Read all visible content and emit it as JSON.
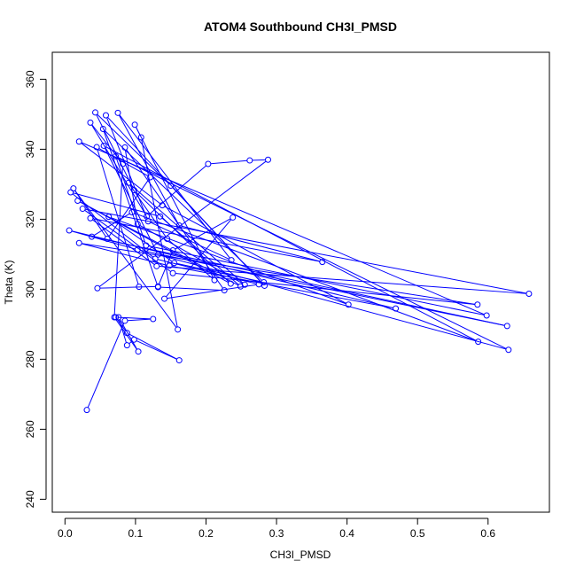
{
  "chart_data": {
    "type": "scatter",
    "title": "ATOM4 Southbound CH3I_PMSD",
    "xlabel": "CH3I_PMSD",
    "ylabel": "Theta (K)",
    "xlim": [
      -0.018,
      0.687
    ],
    "ylim": [
      236.3,
      367.7
    ],
    "xticks": [
      0.0,
      0.1,
      0.2,
      0.3,
      0.4,
      0.5,
      0.6
    ],
    "xtick_labels": [
      "0.0",
      "0.1",
      "0.2",
      "0.3",
      "0.4",
      "0.5",
      "0.6"
    ],
    "yticks": [
      240,
      260,
      280,
      300,
      320,
      340,
      360
    ],
    "ytick_labels": [
      "240",
      "260",
      "280",
      "300",
      "320",
      "340",
      "360"
    ],
    "grid": false,
    "marker": "open-circle",
    "line": "connected-in-order",
    "colors": {
      "series": "#0000ff",
      "axes": "#000000",
      "background": "#ffffff"
    },
    "series": [
      {
        "points": [
          [
            0.031,
            265.5
          ],
          [
            0.085,
            291.0
          ],
          [
            0.125,
            291.5
          ],
          [
            0.072,
            292.0
          ],
          [
            0.088,
            287.5
          ],
          [
            0.162,
            279.7
          ],
          [
            0.098,
            285.6
          ],
          [
            0.088,
            284.0
          ],
          [
            0.076,
            292.0
          ],
          [
            0.104,
            282.2
          ],
          [
            0.07,
            292.0
          ],
          [
            0.082,
            335.8
          ],
          [
            0.036,
            347.6
          ],
          [
            0.116,
            320.8
          ],
          [
            0.203,
            335.8
          ],
          [
            0.262,
            336.8
          ],
          [
            0.288,
            337.0
          ],
          [
            0.046,
            300.3
          ],
          [
            0.132,
            300.8
          ],
          [
            0.153,
            311.1
          ],
          [
            0.238,
            320.5
          ],
          [
            0.141,
            297.3
          ],
          [
            0.275,
            301.4
          ],
          [
            0.128,
            308.7
          ],
          [
            0.008,
            327.7
          ],
          [
            0.135,
            320.8
          ],
          [
            0.249,
            300.8
          ],
          [
            0.018,
            325.3
          ],
          [
            0.235,
            301.6
          ],
          [
            0.098,
            328.3
          ],
          [
            0.043,
            350.5
          ],
          [
            0.15,
            329.6
          ],
          [
            0.283,
            301.0
          ],
          [
            0.058,
            349.7
          ],
          [
            0.118,
            319.4
          ],
          [
            0.236,
            308.3
          ],
          [
            0.075,
            350.4
          ],
          [
            0.162,
            318.2
          ],
          [
            0.365,
            307.8
          ],
          [
            0.036,
            320.3
          ],
          [
            0.13,
            306.6
          ],
          [
            0.658,
            298.7
          ],
          [
            0.025,
            323.0
          ],
          [
            0.153,
            304.6
          ],
          [
            0.585,
            295.6
          ],
          [
            0.02,
            313.2
          ],
          [
            0.148,
            306.7
          ],
          [
            0.469,
            294.5
          ],
          [
            0.006,
            316.8
          ],
          [
            0.103,
            311.3
          ],
          [
            0.627,
            289.5
          ],
          [
            0.038,
            315.0
          ],
          [
            0.095,
            322.0
          ],
          [
            0.586,
            285.0
          ],
          [
            0.055,
            341.0
          ],
          [
            0.132,
            309.9
          ],
          [
            0.629,
            282.7
          ],
          [
            0.072,
            338.0
          ],
          [
            0.115,
            312.5
          ],
          [
            0.598,
            292.5
          ],
          [
            0.02,
            342.2
          ],
          [
            0.138,
            324.0
          ],
          [
            0.402,
            295.6
          ],
          [
            0.062,
            320.7
          ],
          [
            0.155,
            307.5
          ],
          [
            0.282,
            302.0
          ],
          [
            0.054,
            345.8
          ],
          [
            0.132,
            300.6
          ],
          [
            0.226,
            299.7
          ],
          [
            0.085,
            340.5
          ],
          [
            0.103,
            318.6
          ],
          [
            0.255,
            301.3
          ],
          [
            0.09,
            330.4
          ],
          [
            0.145,
            314.4
          ],
          [
            0.212,
            302.6
          ],
          [
            0.099,
            347.0
          ],
          [
            0.108,
            343.4
          ],
          [
            0.16,
            288.5
          ],
          [
            0.012,
            328.8
          ],
          [
            0.06,
            314.4
          ],
          [
            0.121,
            332.0
          ],
          [
            0.045,
            340.6
          ],
          [
            0.105,
            300.7
          ]
        ]
      }
    ]
  }
}
